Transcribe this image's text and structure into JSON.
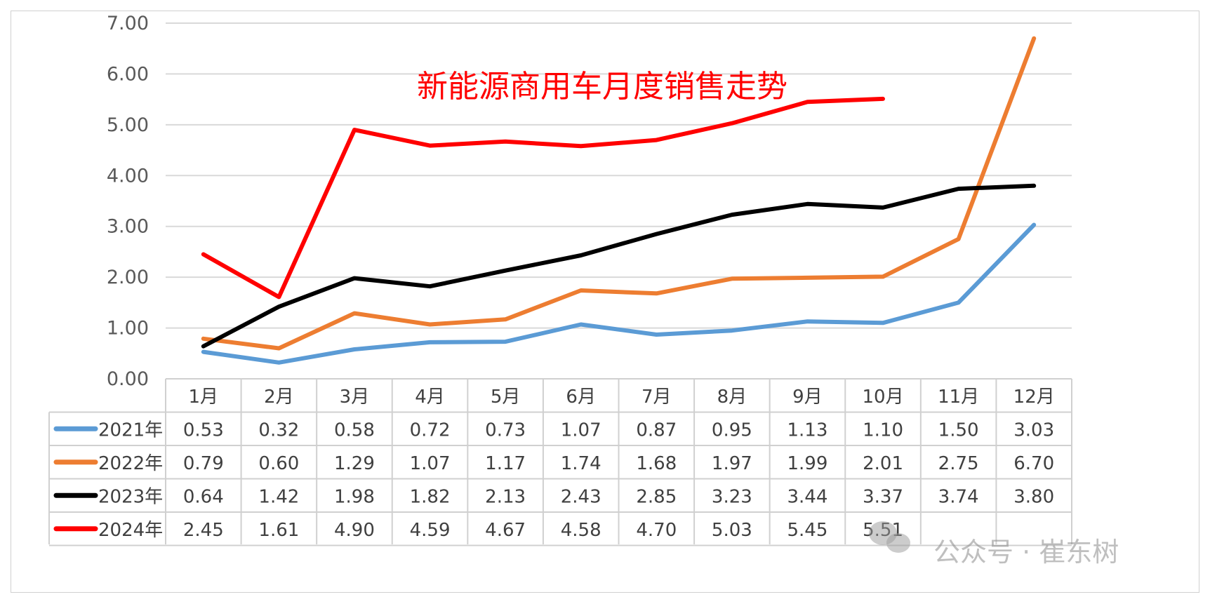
{
  "chart_data": {
    "type": "line",
    "title": "新能源商用车月度销售走势",
    "categories": [
      "1月",
      "2月",
      "3月",
      "4月",
      "5月",
      "6月",
      "7月",
      "8月",
      "9月",
      "10月",
      "11月",
      "12月"
    ],
    "ylim": [
      0,
      7
    ],
    "yticks": [
      "0.00",
      "1.00",
      "2.00",
      "3.00",
      "4.00",
      "5.00",
      "6.00",
      "7.00"
    ],
    "grid": true,
    "legend": "data-table",
    "series": [
      {
        "name": "2021年",
        "color": "#5b9bd5",
        "values": [
          0.53,
          0.32,
          0.58,
          0.72,
          0.73,
          1.07,
          0.87,
          0.95,
          1.13,
          1.1,
          1.5,
          3.03
        ]
      },
      {
        "name": "2022年",
        "color": "#ed7d31",
        "values": [
          0.79,
          0.6,
          1.29,
          1.07,
          1.17,
          1.74,
          1.68,
          1.97,
          1.99,
          2.01,
          2.75,
          6.7
        ]
      },
      {
        "name": "2023年",
        "color": "#000000",
        "values": [
          0.64,
          1.42,
          1.98,
          1.82,
          2.13,
          2.43,
          2.85,
          3.23,
          3.44,
          3.37,
          3.74,
          3.8
        ]
      },
      {
        "name": "2024年",
        "color": "#ff0000",
        "values": [
          2.45,
          1.61,
          4.9,
          4.59,
          4.67,
          4.58,
          4.7,
          5.03,
          5.45,
          5.51,
          null,
          null
        ]
      }
    ]
  },
  "watermark": {
    "icon": "wechat-icon",
    "text": "公众号 · 崔东树"
  }
}
